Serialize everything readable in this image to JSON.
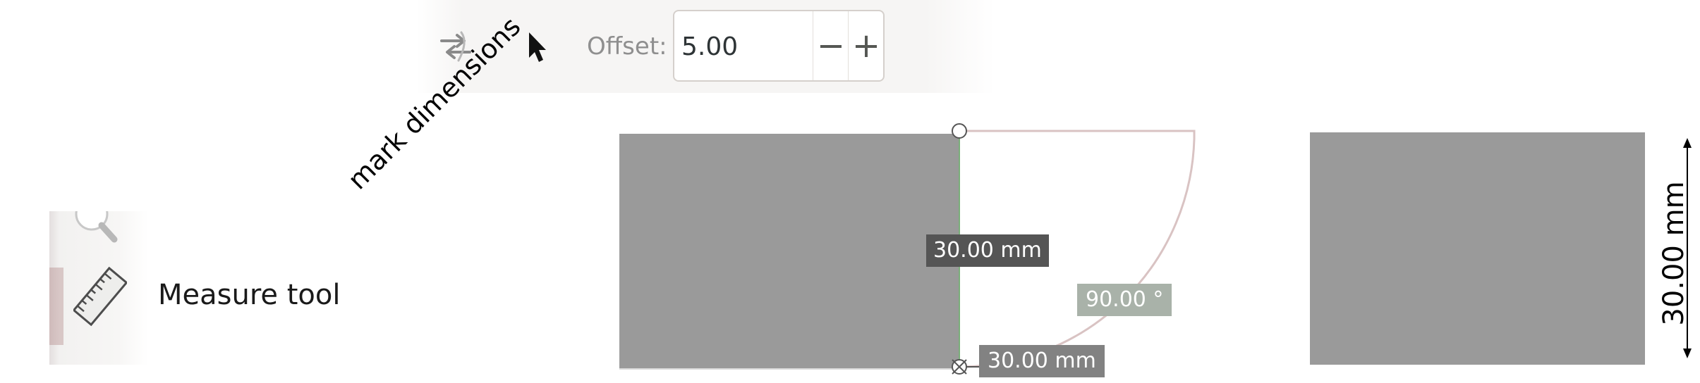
{
  "toolbar": {
    "connector_icon": "connector-icon",
    "select_icon": "pointer-arrow-icon",
    "offset_label": "Offset:",
    "offset_value": "5.00",
    "minus_label": "−",
    "plus_label": "+"
  },
  "tools_panel": {
    "zoom_icon": "zoom-magnifier-icon",
    "measure_icon": "ruler-icon",
    "measure_label": "Measure tool"
  },
  "annotation": {
    "text": "mark dimensions"
  },
  "measurements": {
    "vertical": "30.00 mm",
    "angle": "90.00 °",
    "horizontal": "30.00 mm",
    "marked_dimension": "30.00 mm"
  },
  "colors": {
    "shape_fill": "#9a9a9a",
    "arc_stroke": "#d9c3c3",
    "dim_dark": "#555555",
    "dim_angle": "#a9b2a9",
    "dim_mid": "#828282"
  }
}
